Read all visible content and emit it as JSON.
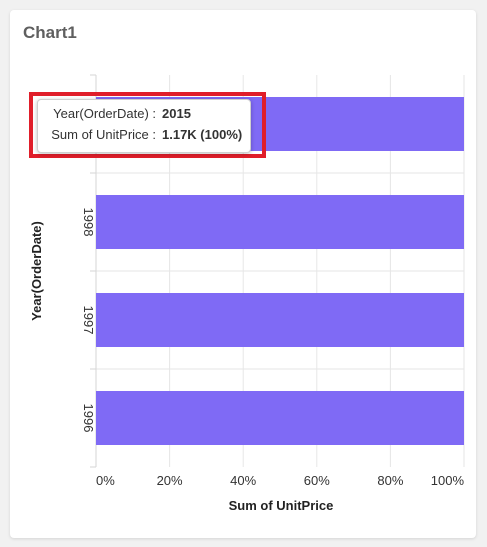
{
  "card": {
    "title": "Chart1"
  },
  "tooltip": {
    "year_key": "Year(OrderDate) :",
    "year_value": "2015",
    "sum_key": "Sum of UnitPrice :",
    "sum_value": "1.17K (100%)"
  },
  "colors": {
    "bar": "#7f6af5",
    "highlight": "#e01e2a",
    "grid": "#e6e6e6"
  },
  "chart_data": {
    "type": "bar",
    "orientation": "horizontal",
    "stacked_percent": true,
    "categories": [
      "2015",
      "1998",
      "1997",
      "1996"
    ],
    "visible_category_labels": [
      "1998",
      "1997",
      "1996"
    ],
    "values_percent": [
      100,
      100,
      100,
      100
    ],
    "xlabel": "Sum of UnitPrice",
    "ylabel": "Year(OrderDate)",
    "xticks": [
      "0%",
      "20%",
      "40%",
      "60%",
      "80%",
      "100%"
    ],
    "xlim": [
      0,
      100
    ],
    "grid": true
  }
}
